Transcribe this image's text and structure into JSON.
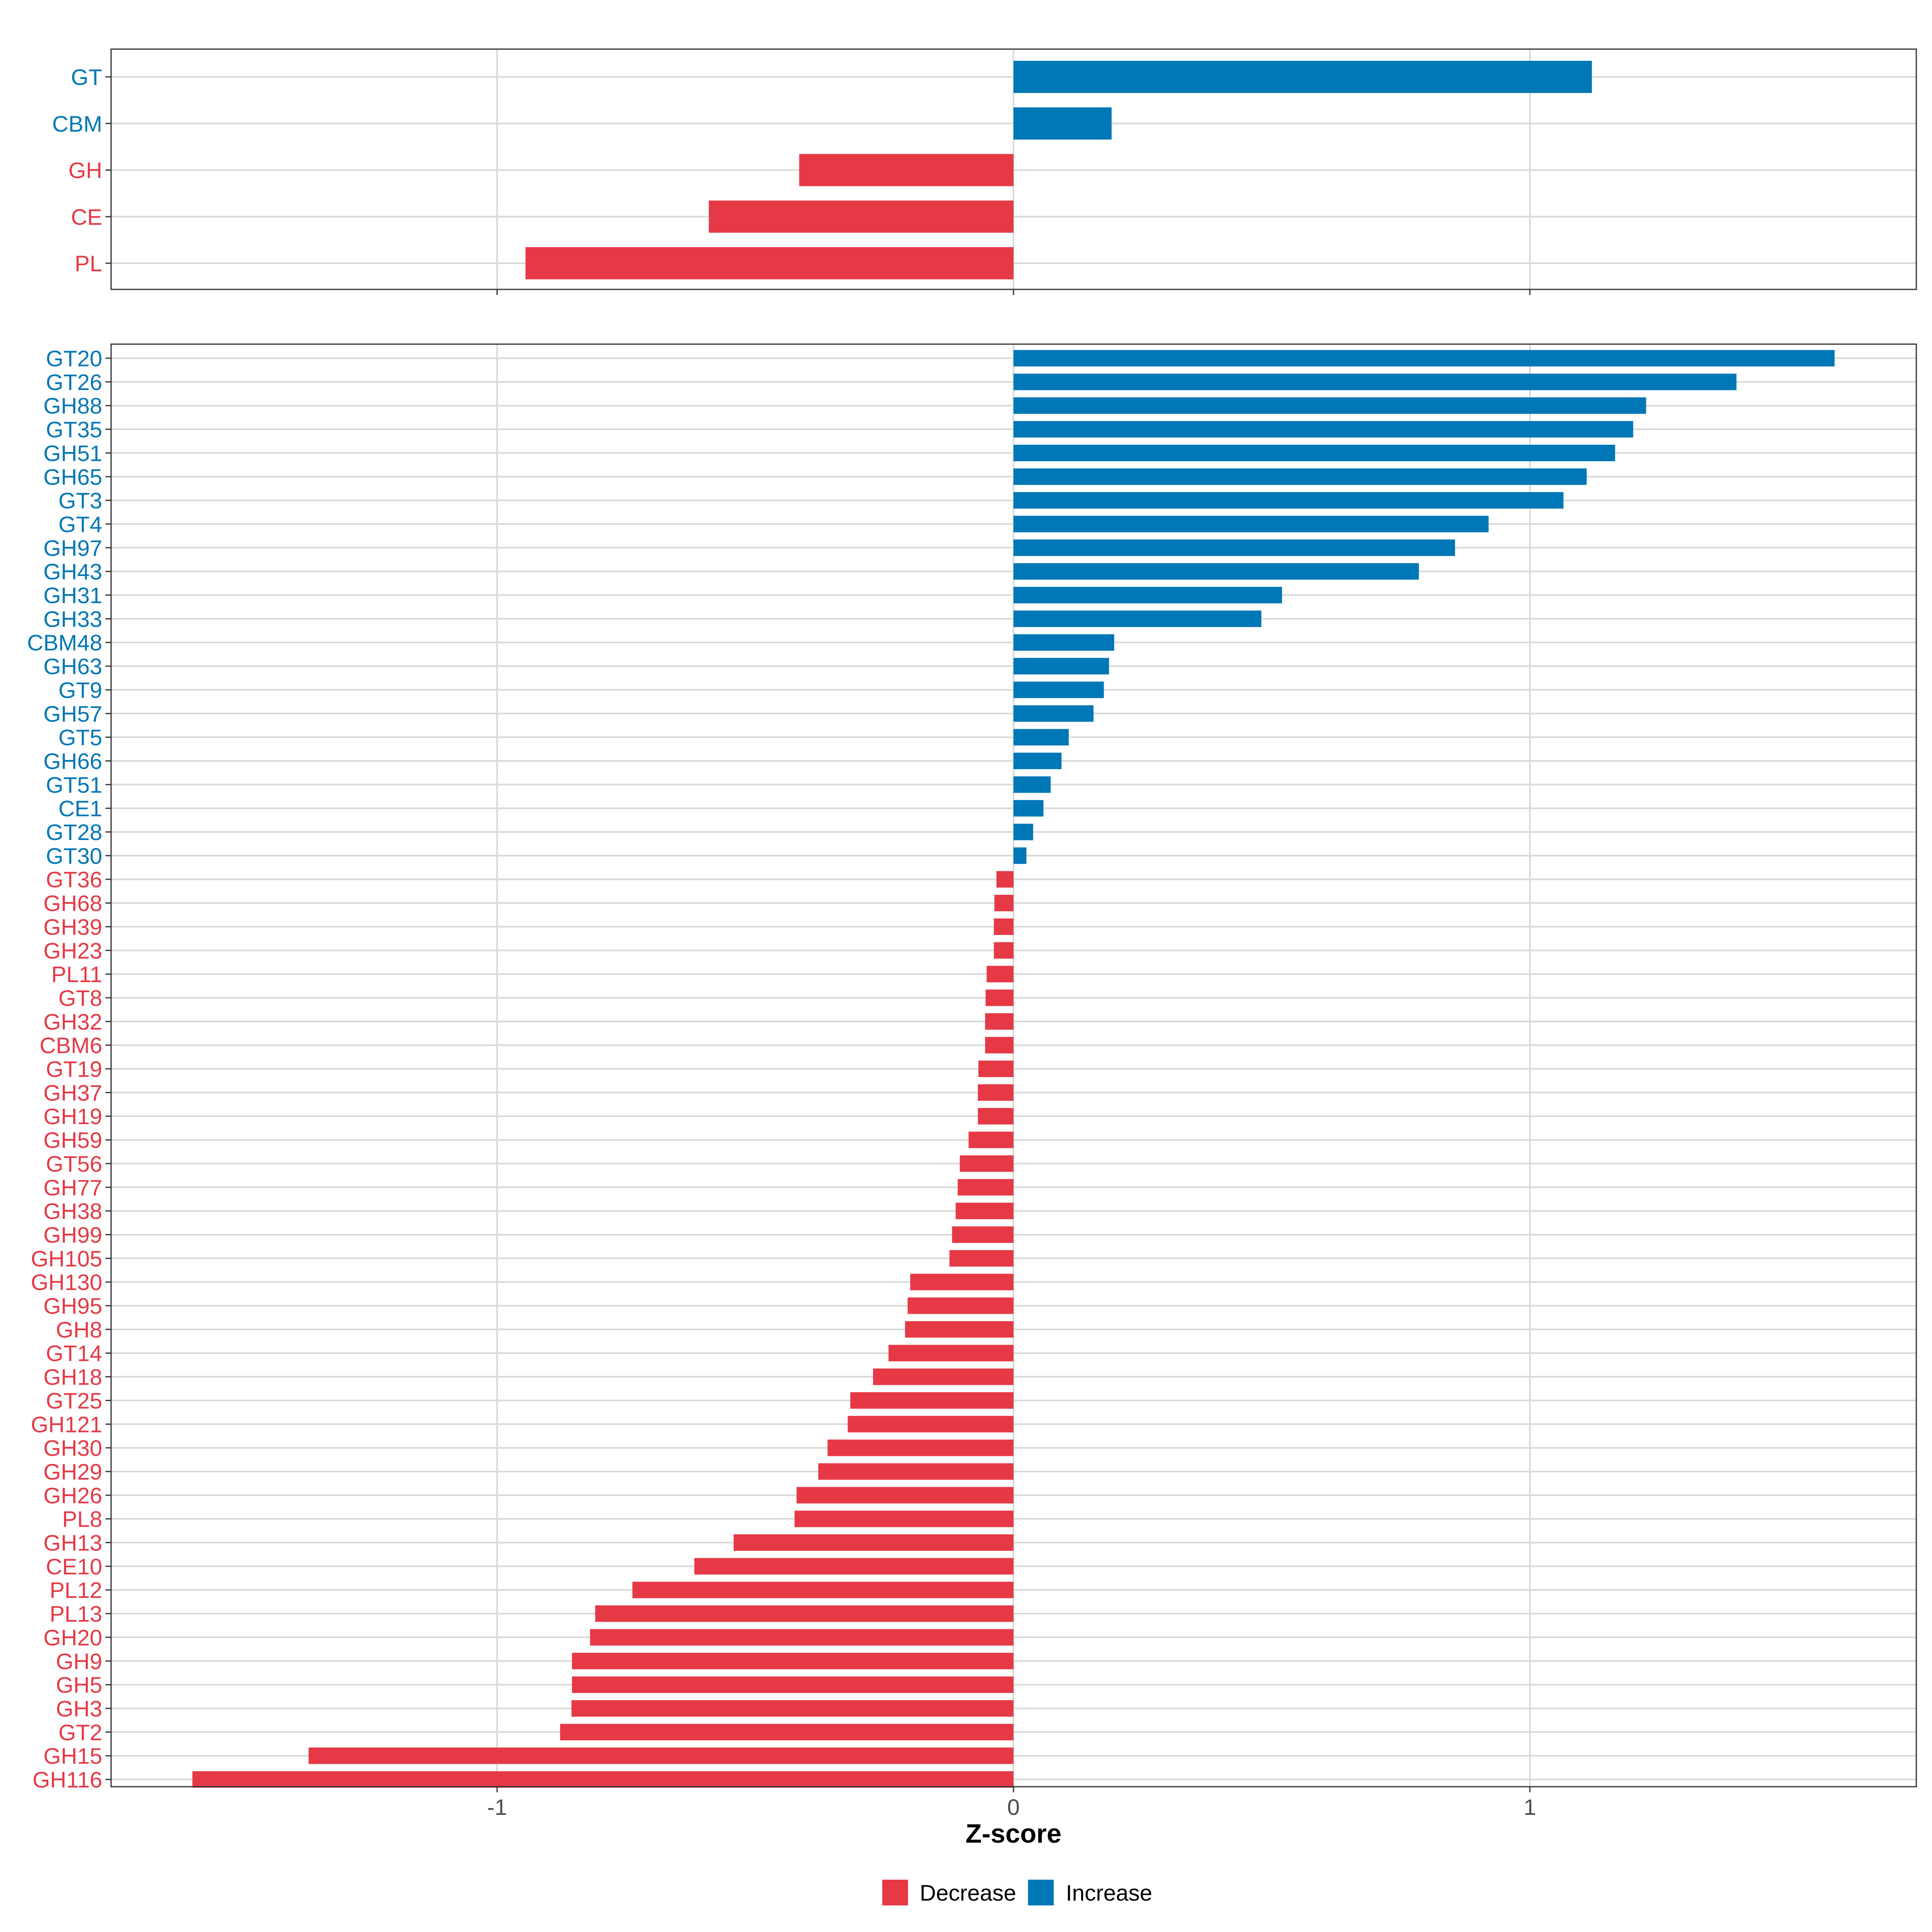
{
  "colors": {
    "decrease": "#E63946",
    "increase": "#0077B6"
  },
  "chart_data": [
    {
      "type": "bar",
      "orientation": "horizontal",
      "panel": "top",
      "categories": [
        "GT",
        "CBM",
        "GH",
        "CE",
        "PL"
      ],
      "values": [
        1.12,
        0.19,
        -0.415,
        -0.59,
        -0.945
      ],
      "xlim": [
        -1.75,
        1.75
      ],
      "xticks": [
        "-1",
        "0",
        "1"
      ],
      "grid": true
    },
    {
      "type": "bar",
      "orientation": "horizontal",
      "panel": "bottom",
      "categories": [
        "GT20",
        "GT26",
        "GH88",
        "GT35",
        "GH51",
        "GH65",
        "GT3",
        "GT4",
        "GH97",
        "GH43",
        "GH31",
        "GH33",
        "CBM48",
        "GH63",
        "GT9",
        "GH57",
        "GT5",
        "GH66",
        "GT51",
        "CE1",
        "GT28",
        "GT30",
        "GT36",
        "GH68",
        "GH39",
        "GH23",
        "PL11",
        "GT8",
        "GH32",
        "CBM6",
        "GT19",
        "GH37",
        "GH19",
        "GH59",
        "GT56",
        "GH77",
        "GH38",
        "GH99",
        "GH105",
        "GH130",
        "GH95",
        "GH8",
        "GT14",
        "GH18",
        "GT25",
        "GH121",
        "GH30",
        "GH29",
        "GH26",
        "PL8",
        "GH13",
        "CE10",
        "PL12",
        "PL13",
        "GH20",
        "GH9",
        "GH5",
        "GH3",
        "GT2",
        "GH15",
        "GH116"
      ],
      "values": [
        1.59,
        1.4,
        1.225,
        1.2,
        1.165,
        1.11,
        1.065,
        0.92,
        0.855,
        0.785,
        0.52,
        0.48,
        0.195,
        0.185,
        0.175,
        0.155,
        0.107,
        0.093,
        0.072,
        0.058,
        0.038,
        0.025,
        -0.033,
        -0.037,
        -0.038,
        -0.038,
        -0.052,
        -0.054,
        -0.055,
        -0.055,
        -0.068,
        -0.069,
        -0.069,
        -0.087,
        -0.104,
        -0.108,
        -0.112,
        -0.119,
        -0.124,
        -0.2,
        -0.205,
        -0.21,
        -0.242,
        -0.272,
        -0.316,
        -0.321,
        -0.36,
        -0.378,
        -0.42,
        -0.424,
        -0.542,
        -0.618,
        -0.738,
        -0.81,
        -0.82,
        -0.855,
        -0.855,
        -0.856,
        -0.878,
        -1.365,
        -1.59
      ],
      "xlim": [
        -1.75,
        1.75
      ],
      "xticks": [
        "-1",
        "0",
        "1"
      ],
      "xlabel": "Z-score",
      "grid": true
    }
  ],
  "legend": {
    "position": "bottom",
    "items": [
      {
        "label": "Decrease",
        "color": "#E63946"
      },
      {
        "label": "Increase",
        "color": "#0077B6"
      }
    ]
  }
}
